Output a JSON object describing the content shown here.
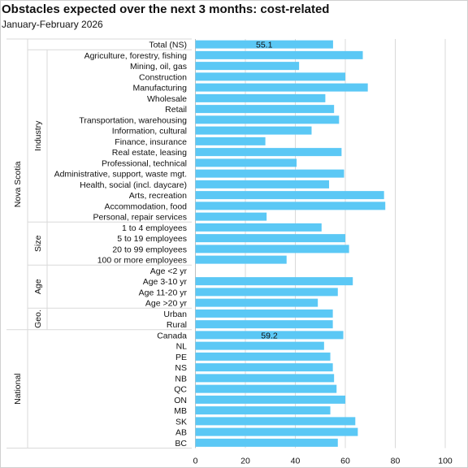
{
  "title": "Obstacles expected over the next 3 months:  cost-related",
  "subtitle": "January-February  2026",
  "colors": {
    "bar": "#5BC8F5",
    "grid": "#d9d9d9",
    "axis": "#bfbfbf"
  },
  "chart_data": {
    "type": "bar",
    "orientation": "horizontal",
    "title": "Obstacles expected over the next 3 months:  cost-related",
    "subtitle": "January-February  2026",
    "xlim": [
      0,
      100
    ],
    "xticks": [
      0,
      20,
      40,
      60,
      80,
      100
    ],
    "grid": true,
    "categories": [
      "Total (NS)",
      "Agriculture, forestry, fishing",
      "Mining, oil, gas",
      "Construction",
      "Manufacturing",
      "Wholesale",
      "Retail",
      "Transportation, warehousing",
      "Information, cultural",
      "Finance, insurance",
      "Real estate, leasing",
      "Professional, technical",
      "Administrative, support, waste mgt.",
      "Health, social (incl. daycare)",
      "Arts, recreation",
      "Accommodation, food",
      "Personal, repair services",
      "1 to 4 employees",
      "5 to 19 employees",
      "20 to 99 employees",
      "100 or more employees",
      "Age <2 yr",
      "Age 3-10 yr",
      "Age 11-20 yr",
      "Age >20 yr",
      "Urban",
      "Rural",
      "Canada",
      "NL",
      "PE",
      "NS",
      "NB",
      "QC",
      "ON",
      "MB",
      "SK",
      "AB",
      "BC"
    ],
    "values": [
      55.1,
      67,
      41.5,
      60,
      69,
      52,
      55.5,
      57.5,
      46.5,
      28,
      58.5,
      40.5,
      59.5,
      53.5,
      75.5,
      76,
      28.5,
      50.5,
      60,
      61.5,
      36.5,
      null,
      63,
      57,
      49,
      55,
      55,
      59.2,
      51.5,
      54,
      55,
      55.5,
      56.5,
      60,
      54,
      64,
      65,
      57
    ],
    "data_labels": [
      {
        "category": "Total (NS)",
        "text": "55.1"
      },
      {
        "category": "Canada",
        "text": "59.2"
      }
    ],
    "groups": [
      {
        "label": "Nova Scotia",
        "level": 0,
        "start": 0,
        "end": 26
      },
      {
        "label": "Industry",
        "level": 1,
        "start": 1,
        "end": 16
      },
      {
        "label": "Size",
        "level": 1,
        "start": 17,
        "end": 20
      },
      {
        "label": "Age",
        "level": 1,
        "start": 21,
        "end": 24
      },
      {
        "label": "Geo.",
        "level": 1,
        "start": 25,
        "end": 26
      },
      {
        "label": "National",
        "level": 0,
        "start": 27,
        "end": 37
      }
    ]
  }
}
